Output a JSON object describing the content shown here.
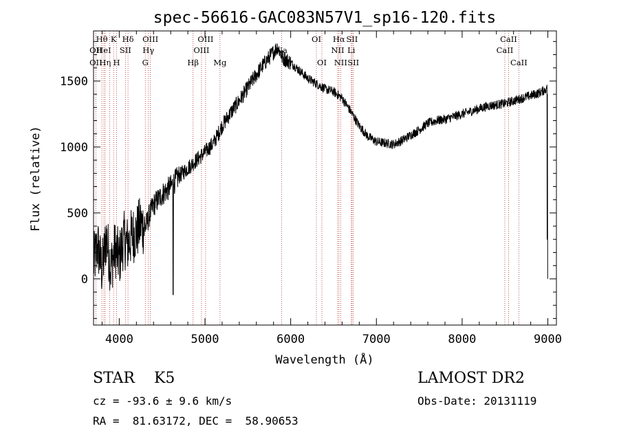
{
  "chart_data": {
    "type": "line",
    "title": "spec-56616-GAC083N57V1_sp16-120.fits",
    "xlabel": "Wavelength (Å)",
    "ylabel": "Flux (relative)",
    "xlim": [
      3700,
      9100
    ],
    "ylim": [
      -350,
      1880
    ],
    "x_ticks": [
      4000,
      5000,
      6000,
      7000,
      8000,
      9000
    ],
    "y_ticks": [
      0,
      500,
      1000,
      1500
    ],
    "grid": false,
    "series": [
      {
        "color": "#000000",
        "points": [
          [
            3700,
            120
          ],
          [
            3750,
            250
          ],
          [
            3800,
            60
          ],
          [
            3850,
            320
          ],
          [
            3900,
            80
          ],
          [
            3950,
            230
          ],
          [
            4000,
            150
          ],
          [
            4050,
            300
          ],
          [
            4100,
            260
          ],
          [
            4150,
            330
          ],
          [
            4200,
            350
          ],
          [
            4250,
            420
          ],
          [
            4300,
            380
          ],
          [
            4350,
            480
          ],
          [
            4400,
            560
          ],
          [
            4450,
            600
          ],
          [
            4500,
            640
          ],
          [
            4600,
            700
          ],
          [
            4700,
            780
          ],
          [
            4800,
            840
          ],
          [
            4900,
            900
          ],
          [
            5000,
            960
          ],
          [
            5100,
            1030
          ],
          [
            5200,
            1160
          ],
          [
            5300,
            1260
          ],
          [
            5400,
            1350
          ],
          [
            5500,
            1450
          ],
          [
            5600,
            1550
          ],
          [
            5700,
            1640
          ],
          [
            5800,
            1720
          ],
          [
            5850,
            1760
          ],
          [
            5900,
            1680
          ],
          [
            5950,
            1660
          ],
          [
            6000,
            1640
          ],
          [
            6100,
            1580
          ],
          [
            6200,
            1520
          ],
          [
            6300,
            1480
          ],
          [
            6400,
            1440
          ],
          [
            6500,
            1420
          ],
          [
            6600,
            1370
          ],
          [
            6700,
            1270
          ],
          [
            6800,
            1160
          ],
          [
            6900,
            1080
          ],
          [
            7000,
            1040
          ],
          [
            7100,
            1030
          ],
          [
            7200,
            1020
          ],
          [
            7300,
            1050
          ],
          [
            7400,
            1090
          ],
          [
            7500,
            1130
          ],
          [
            7600,
            1180
          ],
          [
            7700,
            1200
          ],
          [
            7800,
            1210
          ],
          [
            7900,
            1230
          ],
          [
            8000,
            1250
          ],
          [
            8100,
            1270
          ],
          [
            8200,
            1290
          ],
          [
            8300,
            1310
          ],
          [
            8400,
            1320
          ],
          [
            8500,
            1330
          ],
          [
            8600,
            1350
          ],
          [
            8700,
            1370
          ],
          [
            8800,
            1390
          ],
          [
            8900,
            1410
          ],
          [
            8980,
            1440
          ]
        ]
      }
    ],
    "line_markers": [
      {
        "x": 3727,
        "labels": [
          "OII",
          "OII"
        ],
        "rows": [
          2,
          3
        ]
      },
      {
        "x": 3797,
        "labels": [
          "Hθ"
        ],
        "rows": [
          1
        ]
      },
      {
        "x": 3820,
        "labels": [
          "HeI"
        ],
        "rows": [
          2
        ]
      },
      {
        "x": 3835,
        "labels": [
          "Hη"
        ],
        "rows": [
          3
        ]
      },
      {
        "x": 3889,
        "labels": [],
        "rows": []
      },
      {
        "x": 3934,
        "labels": [
          "K"
        ],
        "rows": [
          1
        ]
      },
      {
        "x": 3969,
        "labels": [
          "H"
        ],
        "rows": [
          3
        ]
      },
      {
        "x": 4072,
        "labels": [
          "SII"
        ],
        "rows": [
          2
        ]
      },
      {
        "x": 4102,
        "labels": [
          "Hδ"
        ],
        "rows": [
          1
        ]
      },
      {
        "x": 4304,
        "labels": [
          "G"
        ],
        "rows": [
          3
        ]
      },
      {
        "x": 4340,
        "labels": [
          "Hγ"
        ],
        "rows": [
          2
        ]
      },
      {
        "x": 4363,
        "labels": [
          "OIII"
        ],
        "rows": [
          1
        ]
      },
      {
        "x": 4861,
        "labels": [
          "Hβ"
        ],
        "rows": [
          3
        ]
      },
      {
        "x": 4959,
        "labels": [
          "OIII"
        ],
        "rows": [
          2
        ]
      },
      {
        "x": 5007,
        "labels": [
          "OIII"
        ],
        "rows": [
          1
        ]
      },
      {
        "x": 5175,
        "labels": [
          "Mg"
        ],
        "rows": [
          3
        ]
      },
      {
        "x": 5894,
        "labels": [
          "Na"
        ],
        "rows": [
          2
        ]
      },
      {
        "x": 6300,
        "labels": [
          "OI"
        ],
        "rows": [
          1
        ]
      },
      {
        "x": 6364,
        "labels": [
          "OI"
        ],
        "rows": [
          3
        ]
      },
      {
        "x": 6548,
        "labels": [
          "NII"
        ],
        "rows": [
          2
        ]
      },
      {
        "x": 6563,
        "labels": [
          "Hα"
        ],
        "rows": [
          1
        ]
      },
      {
        "x": 6583,
        "labels": [
          "NII"
        ],
        "rows": [
          3
        ]
      },
      {
        "x": 6707,
        "labels": [
          "Li"
        ],
        "rows": [
          2
        ]
      },
      {
        "x": 6716,
        "labels": [
          "SII"
        ],
        "rows": [
          1
        ]
      },
      {
        "x": 6731,
        "labels": [
          "SII"
        ],
        "rows": [
          3
        ]
      },
      {
        "x": 8498,
        "labels": [
          "CaII"
        ],
        "rows": [
          2
        ]
      },
      {
        "x": 8542,
        "labels": [
          "CaII"
        ],
        "rows": [
          1
        ]
      },
      {
        "x": 8662,
        "labels": [
          "CaII"
        ],
        "rows": [
          3
        ]
      }
    ]
  },
  "info": {
    "classification": "STAR    K5",
    "survey": "LAMOST DR2",
    "redshift": "cz = -93.6 ± 9.6 km/s",
    "obs_date": "Obs-Date: 20131119",
    "coords": "RA =  81.63172, DEC =  58.90653"
  }
}
